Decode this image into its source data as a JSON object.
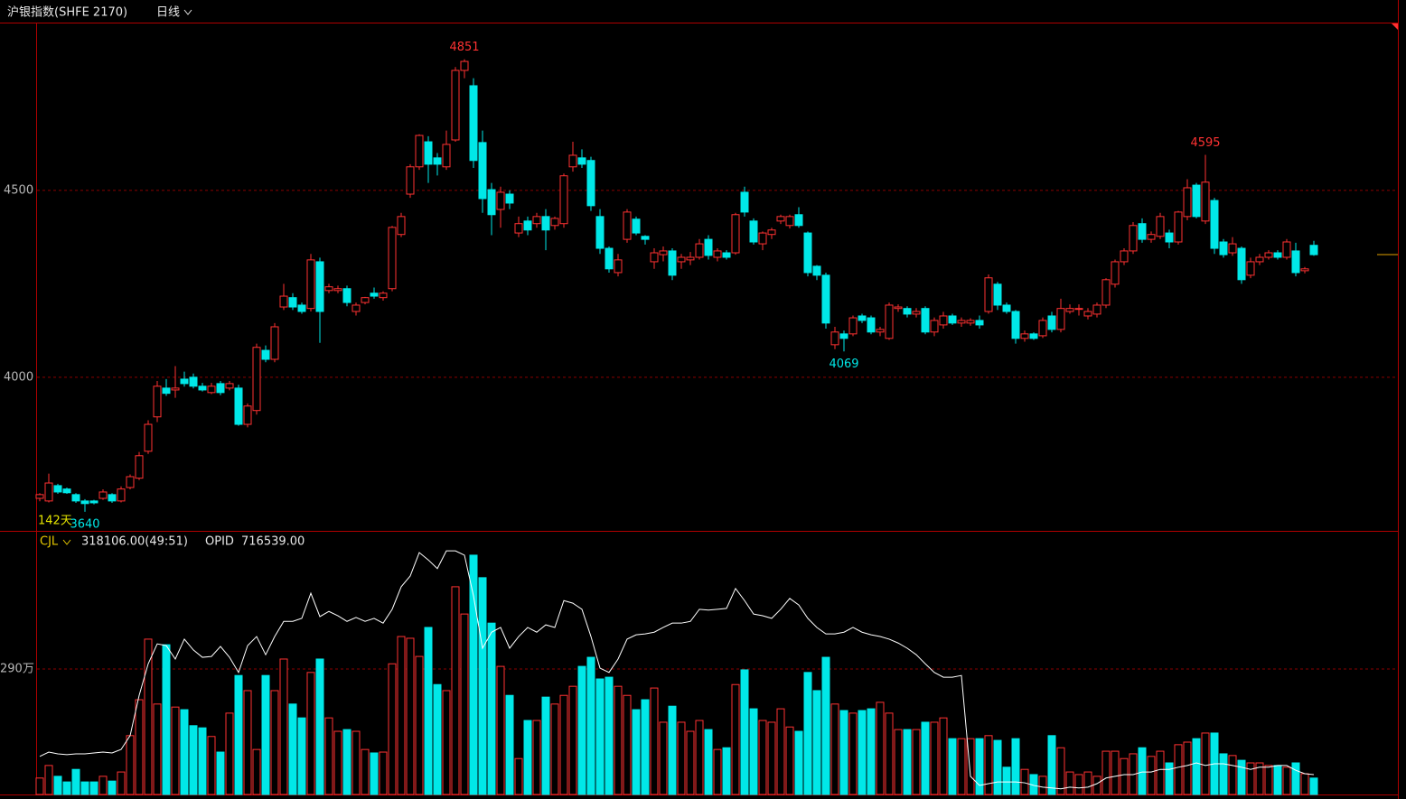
{
  "chart_data": [
    {
      "type": "candlestick",
      "title": "沪银指数(SHFE 2170)",
      "period": "日线",
      "period_label": "142天",
      "up_color": "#ff3232",
      "down_color": "#00e8e8",
      "ylim": [
        3589,
        4949
      ],
      "yticks": [
        4000,
        4500
      ],
      "grid": true,
      "extreme_labels": [
        4851,
        4595,
        4069,
        3640
      ],
      "candles": [
        [
          3676,
          3690,
          3668,
          3686
        ],
        [
          3669,
          3742,
          3665,
          3717
        ],
        [
          3710,
          3715,
          3688,
          3693
        ],
        [
          3701,
          3705,
          3688,
          3691
        ],
        [
          3686,
          3690,
          3664,
          3669
        ],
        [
          3669,
          3674,
          3640,
          3662
        ],
        [
          3669,
          3672,
          3660,
          3664
        ],
        [
          3676,
          3700,
          3672,
          3693
        ],
        [
          3686,
          3690,
          3664,
          3669
        ],
        [
          3669,
          3708,
          3665,
          3701
        ],
        [
          3705,
          3740,
          3700,
          3734
        ],
        [
          3730,
          3800,
          3725,
          3790
        ],
        [
          3802,
          3885,
          3795,
          3874
        ],
        [
          3894,
          3990,
          3880,
          3976
        ],
        [
          3971,
          3995,
          3950,
          3957
        ],
        [
          3966,
          4030,
          3945,
          3971
        ],
        [
          3995,
          4015,
          3975,
          3983
        ],
        [
          4000,
          4010,
          3970,
          3976
        ],
        [
          3976,
          3985,
          3962,
          3966
        ],
        [
          3959,
          3985,
          3955,
          3976
        ],
        [
          3983,
          3990,
          3952,
          3959
        ],
        [
          3971,
          3990,
          3965,
          3983
        ],
        [
          3971,
          3980,
          3870,
          3874
        ],
        [
          3874,
          3930,
          3866,
          3923
        ],
        [
          3911,
          4090,
          3900,
          4080
        ],
        [
          4072,
          4085,
          4040,
          4048
        ],
        [
          4048,
          4145,
          4040,
          4135
        ],
        [
          4188,
          4250,
          4180,
          4217
        ],
        [
          4213,
          4225,
          4180,
          4188
        ],
        [
          4193,
          4200,
          4170,
          4176
        ],
        [
          4184,
          4330,
          4176,
          4314
        ],
        [
          4309,
          4320,
          4092,
          4176
        ],
        [
          4232,
          4250,
          4225,
          4242
        ],
        [
          4232,
          4245,
          4225,
          4237
        ],
        [
          4237,
          4245,
          4190,
          4200
        ],
        [
          4176,
          4200,
          4165,
          4193
        ],
        [
          4200,
          4215,
          4195,
          4213
        ],
        [
          4225,
          4240,
          4210,
          4217
        ],
        [
          4213,
          4230,
          4205,
          4225
        ],
        [
          4237,
          4405,
          4230,
          4401
        ],
        [
          4382,
          4440,
          4375,
          4430
        ],
        [
          4490,
          4570,
          4480,
          4563
        ],
        [
          4563,
          4650,
          4555,
          4647
        ],
        [
          4630,
          4645,
          4520,
          4570
        ],
        [
          4587,
          4600,
          4540,
          4570
        ],
        [
          4563,
          4660,
          4555,
          4623
        ],
        [
          4635,
          4830,
          4630,
          4821
        ],
        [
          4821,
          4851,
          4800,
          4845
        ],
        [
          4780,
          4800,
          4560,
          4580
        ],
        [
          4628,
          4660,
          4440,
          4478
        ],
        [
          4502,
          4520,
          4380,
          4435
        ],
        [
          4449,
          4510,
          4400,
          4495
        ],
        [
          4490,
          4500,
          4450,
          4466
        ],
        [
          4386,
          4430,
          4375,
          4411
        ],
        [
          4418,
          4430,
          4380,
          4394
        ],
        [
          4411,
          4440,
          4400,
          4430
        ],
        [
          4430,
          4450,
          4340,
          4394
        ],
        [
          4406,
          4430,
          4395,
          4425
        ],
        [
          4411,
          4545,
          4400,
          4539
        ],
        [
          4563,
          4630,
          4550,
          4594
        ],
        [
          4587,
          4610,
          4560,
          4570
        ],
        [
          4580,
          4590,
          4445,
          4459
        ],
        [
          4430,
          4450,
          4330,
          4345
        ],
        [
          4345,
          4350,
          4280,
          4290
        ],
        [
          4280,
          4330,
          4270,
          4314
        ],
        [
          4369,
          4450,
          4360,
          4442
        ],
        [
          4423,
          4430,
          4380,
          4386
        ],
        [
          4377,
          4380,
          4355,
          4369
        ],
        [
          4309,
          4345,
          4290,
          4333
        ],
        [
          4328,
          4350,
          4310,
          4338
        ],
        [
          4338,
          4345,
          4260,
          4273
        ],
        [
          4309,
          4330,
          4290,
          4321
        ],
        [
          4314,
          4335,
          4300,
          4321
        ],
        [
          4321,
          4370,
          4315,
          4357
        ],
        [
          4369,
          4380,
          4315,
          4326
        ],
        [
          4321,
          4345,
          4310,
          4338
        ],
        [
          4333,
          4340,
          4315,
          4321
        ],
        [
          4333,
          4440,
          4328,
          4435
        ],
        [
          4495,
          4510,
          4430,
          4442
        ],
        [
          4418,
          4425,
          4355,
          4362
        ],
        [
          4357,
          4390,
          4340,
          4386
        ],
        [
          4382,
          4400,
          4370,
          4394
        ],
        [
          4418,
          4435,
          4410,
          4430
        ],
        [
          4406,
          4435,
          4398,
          4430
        ],
        [
          4435,
          4455,
          4400,
          4406
        ],
        [
          4386,
          4390,
          4270,
          4280
        ],
        [
          4297,
          4300,
          4260,
          4273
        ],
        [
          4273,
          4280,
          4130,
          4145
        ],
        [
          4087,
          4135,
          4075,
          4121
        ],
        [
          4116,
          4125,
          4069,
          4104
        ],
        [
          4116,
          4165,
          4110,
          4159
        ],
        [
          4164,
          4170,
          4145,
          4152
        ],
        [
          4159,
          4165,
          4115,
          4121
        ],
        [
          4121,
          4135,
          4110,
          4128
        ],
        [
          4104,
          4200,
          4100,
          4193
        ],
        [
          4184,
          4195,
          4175,
          4188
        ],
        [
          4184,
          4190,
          4160,
          4169
        ],
        [
          4169,
          4185,
          4160,
          4176
        ],
        [
          4184,
          4190,
          4115,
          4121
        ],
        [
          4121,
          4160,
          4110,
          4152
        ],
        [
          4140,
          4175,
          4130,
          4164
        ],
        [
          4164,
          4170,
          4140,
          4145
        ],
        [
          4145,
          4160,
          4135,
          4152
        ],
        [
          4145,
          4158,
          4138,
          4152
        ],
        [
          4152,
          4165,
          4130,
          4140
        ],
        [
          4176,
          4275,
          4170,
          4266
        ],
        [
          4249,
          4255,
          4180,
          4193
        ],
        [
          4193,
          4200,
          4170,
          4176
        ],
        [
          4176,
          4180,
          4090,
          4104
        ],
        [
          4104,
          4125,
          4095,
          4116
        ],
        [
          4116,
          4120,
          4100,
          4104
        ],
        [
          4111,
          4160,
          4105,
          4152
        ],
        [
          4164,
          4175,
          4120,
          4128
        ],
        [
          4128,
          4210,
          4120,
          4184
        ],
        [
          4176,
          4195,
          4170,
          4184
        ],
        [
          4184,
          4195,
          4165,
          4184
        ],
        [
          4164,
          4185,
          4155,
          4176
        ],
        [
          4169,
          4200,
          4160,
          4193
        ],
        [
          4193,
          4265,
          4185,
          4261
        ],
        [
          4249,
          4315,
          4240,
          4309
        ],
        [
          4309,
          4345,
          4300,
          4338
        ],
        [
          4338,
          4415,
          4330,
          4406
        ],
        [
          4411,
          4425,
          4360,
          4369
        ],
        [
          4369,
          4390,
          4360,
          4382
        ],
        [
          4377,
          4440,
          4370,
          4430
        ],
        [
          4386,
          4395,
          4345,
          4362
        ],
        [
          4362,
          4445,
          4355,
          4442
        ],
        [
          4430,
          4530,
          4420,
          4507
        ],
        [
          4514,
          4520,
          4425,
          4430
        ],
        [
          4418,
          4595,
          4410,
          4522
        ],
        [
          4473,
          4480,
          4330,
          4345
        ],
        [
          4362,
          4370,
          4320,
          4328
        ],
        [
          4333,
          4375,
          4325,
          4357
        ],
        [
          4345,
          4350,
          4250,
          4261
        ],
        [
          4273,
          4320,
          4265,
          4309
        ],
        [
          4309,
          4330,
          4300,
          4321
        ],
        [
          4321,
          4340,
          4315,
          4333
        ],
        [
          4333,
          4340,
          4315,
          4321
        ],
        [
          4321,
          4370,
          4315,
          4362
        ],
        [
          4338,
          4360,
          4270,
          4280
        ],
        [
          4285,
          4295,
          4278,
          4290
        ],
        [
          4353,
          4365,
          4325,
          4328
        ]
      ]
    },
    {
      "type": "bar",
      "title": "CJL",
      "readout": "318106.00(49:51)",
      "ylim": [
        0,
        605
      ],
      "yticks": [
        {
          "value": 290,
          "label": "290万"
        }
      ],
      "grid": true,
      "series": [
        {
          "name": "CJL",
          "values": [
            38,
            67,
            42,
            29,
            58,
            29,
            29,
            42,
            31,
            52,
            136,
            219,
            359,
            209,
            346,
            202,
            196,
            159,
            154,
            134,
            98,
            188,
            275,
            240,
            104,
            275,
            240,
            313,
            209,
            177,
            282,
            313,
            177,
            146,
            150,
            146,
            104,
            96,
            98,
            302,
            365,
            361,
            319,
            386,
            254,
            240,
            480,
            417,
            553,
            501,
            396,
            296,
            229,
            83,
            171,
            171,
            225,
            209,
            229,
            250,
            296,
            317,
            267,
            271,
            250,
            229,
            196,
            219,
            246,
            167,
            204,
            167,
            146,
            171,
            150,
            104,
            108,
            254,
            288,
            198,
            171,
            167,
            198,
            156,
            146,
            282,
            240,
            317,
            209,
            194,
            188,
            194,
            198,
            213,
            188,
            150,
            150,
            150,
            167,
            167,
            177,
            129,
            129,
            129,
            129,
            136,
            125,
            63,
            129,
            58,
            46,
            42,
            136,
            108,
            52,
            46,
            52,
            42,
            100,
            100,
            83,
            94,
            108,
            88,
            100,
            73,
            115,
            121,
            129,
            142,
            142,
            94,
            90,
            79,
            73,
            73,
            67,
            67,
            63,
            73,
            48,
            38
          ]
        },
        {
          "name": "OPID",
          "readout": "716539.00",
          "color": "#ffffff",
          "values": [
            88,
            98,
            94,
            92,
            94,
            94,
            96,
            98,
            96,
            104,
            136,
            229,
            302,
            348,
            344,
            313,
            359,
            334,
            317,
            319,
            342,
            317,
            282,
            344,
            365,
            323,
            365,
            400,
            400,
            407,
            465,
            411,
            423,
            413,
            400,
            409,
            400,
            407,
            396,
            428,
            480,
            505,
            559,
            542,
            522,
            563,
            563,
            553,
            459,
            338,
            375,
            386,
            338,
            365,
            386,
            375,
            392,
            386,
            448,
            442,
            428,
            365,
            292,
            282,
            313,
            359,
            369,
            371,
            375,
            386,
            396,
            396,
            400,
            428,
            426,
            428,
            430,
            476,
            448,
            417,
            413,
            407,
            428,
            453,
            438,
            407,
            386,
            371,
            371,
            375,
            386,
            375,
            369,
            365,
            359,
            350,
            338,
            323,
            302,
            282,
            271,
            271,
            275,
            42,
            21,
            25,
            29,
            29,
            29,
            27,
            21,
            17,
            15,
            13,
            17,
            15,
            17,
            25,
            38,
            42,
            46,
            46,
            52,
            52,
            58,
            58,
            63,
            67,
            73,
            67,
            71,
            71,
            67,
            63,
            58,
            63,
            63,
            67,
            67,
            56,
            48,
            46
          ]
        }
      ]
    }
  ]
}
